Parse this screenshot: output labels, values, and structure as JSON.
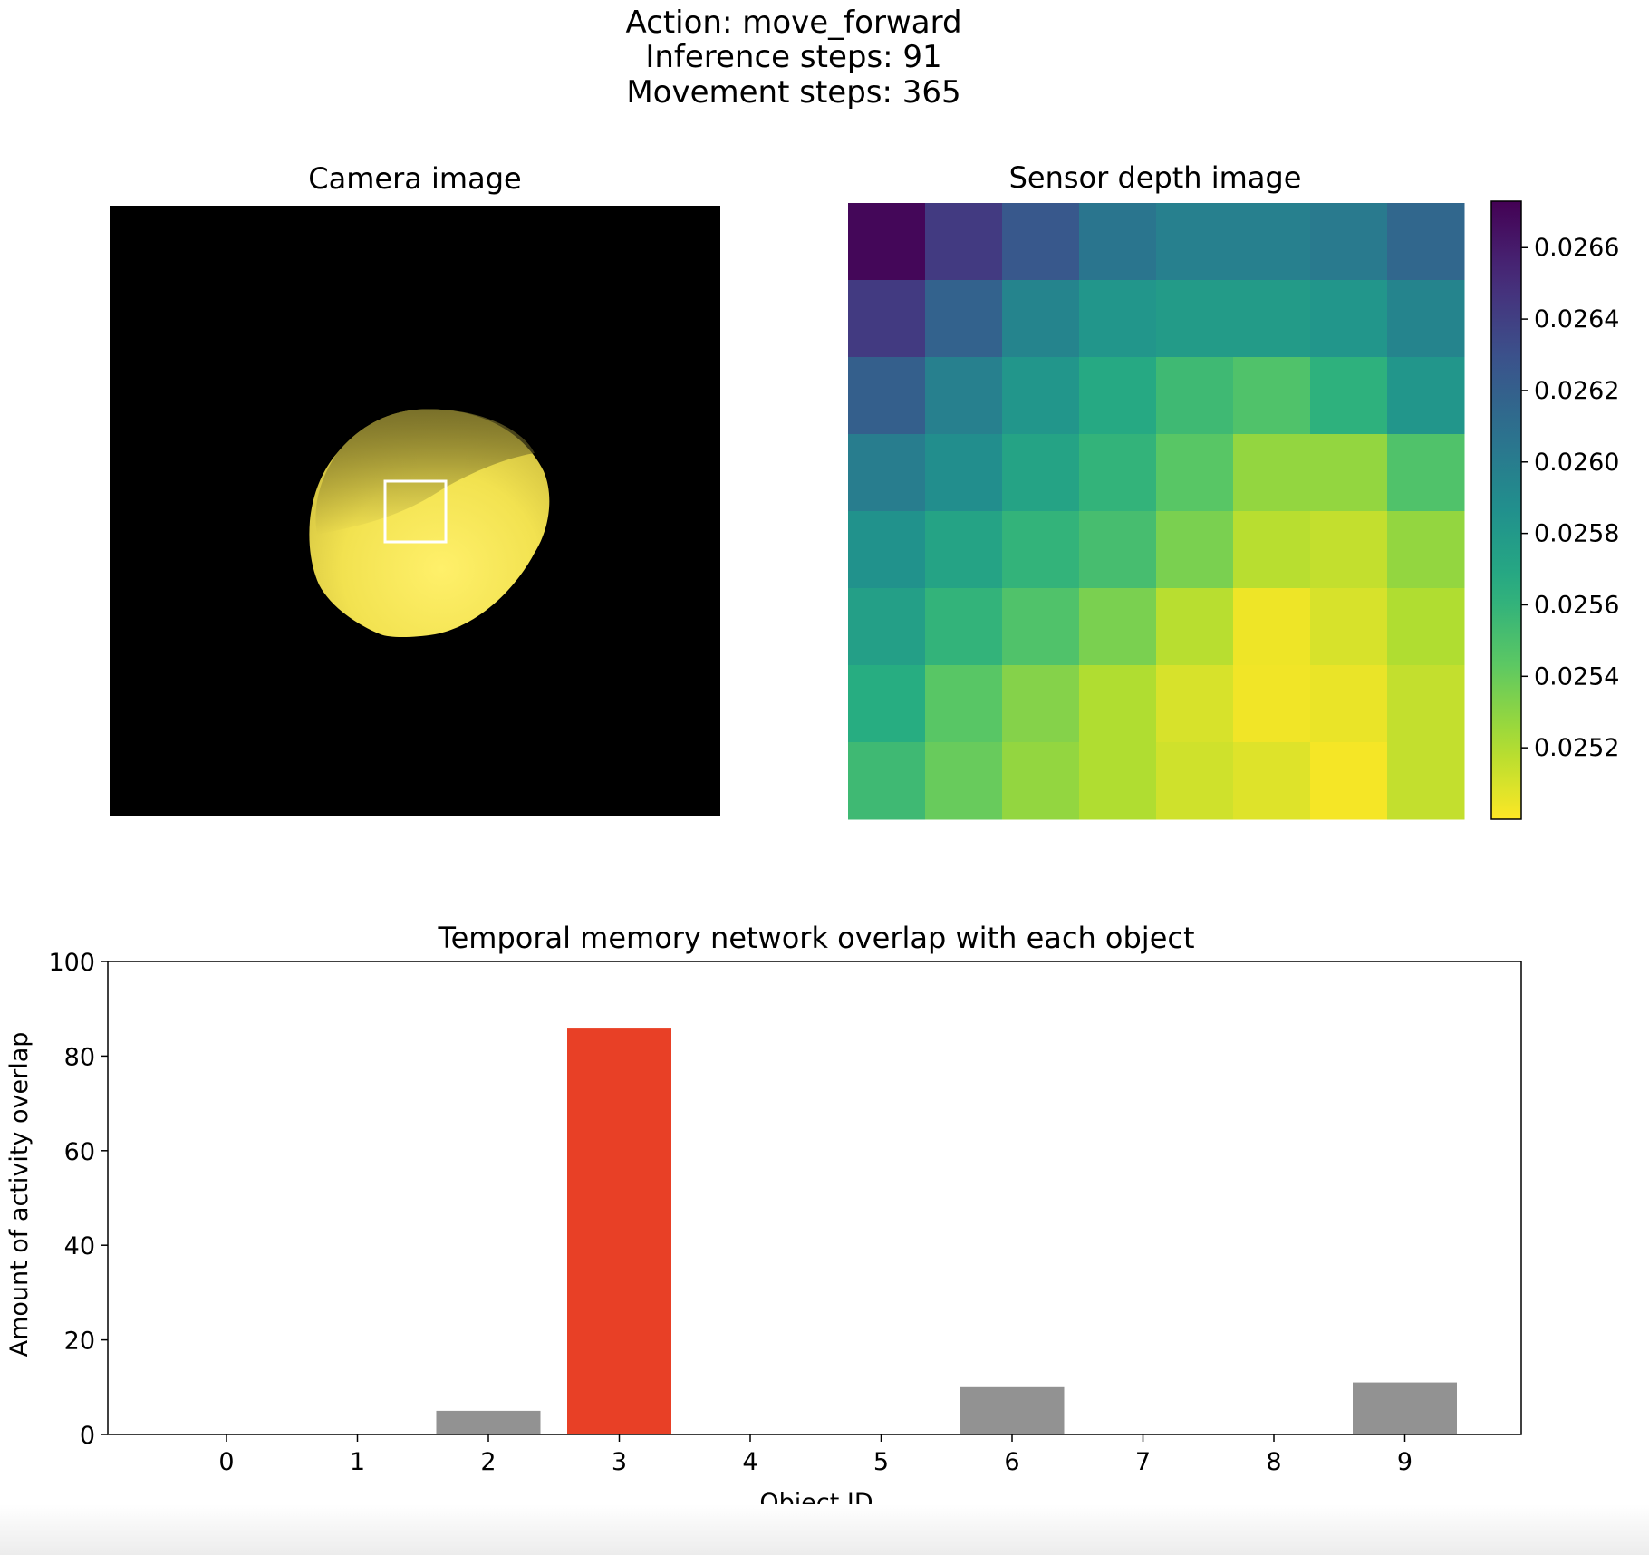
{
  "suptitle": {
    "lines": [
      "Action: move_forward",
      "Inference steps: 91",
      "Movement steps: 365"
    ]
  },
  "camera": {
    "title": "Camera image",
    "background": "#000000",
    "object_color": "#f2e45a",
    "box_color": "#ffffff"
  },
  "chart_data": [
    {
      "type": "heatmap",
      "title": "Sensor depth image",
      "colormap": "viridis_r",
      "vmin": 0.025,
      "vmax": 0.02673,
      "colorbar_ticks": [
        0.0252,
        0.0254,
        0.0256,
        0.0258,
        0.026,
        0.0262,
        0.0264,
        0.0266
      ],
      "colorbar_tick_labels": [
        "0.0252",
        "0.0254",
        "0.0256",
        "0.0258",
        "0.0260",
        "0.0262",
        "0.0264",
        "0.0266"
      ],
      "values": [
        [
          0.0267,
          0.02643,
          0.02625,
          0.02605,
          0.02598,
          0.02598,
          0.02602,
          0.02615
        ],
        [
          0.02643,
          0.02618,
          0.02595,
          0.02582,
          0.02578,
          0.02578,
          0.02582,
          0.02595
        ],
        [
          0.0262,
          0.02598,
          0.02582,
          0.02568,
          0.02555,
          0.02548,
          0.02562,
          0.02582
        ],
        [
          0.026,
          0.02588,
          0.02572,
          0.0256,
          0.02545,
          0.02528,
          0.02528,
          0.02548
        ],
        [
          0.02585,
          0.02572,
          0.0256,
          0.02552,
          0.02535,
          0.02518,
          0.02515,
          0.02528
        ],
        [
          0.02575,
          0.0256,
          0.02548,
          0.02535,
          0.02518,
          0.02504,
          0.0251,
          0.0252
        ],
        [
          0.02565,
          0.02545,
          0.02532,
          0.0252,
          0.0251,
          0.02503,
          0.02505,
          0.02515
        ],
        [
          0.02555,
          0.0254,
          0.02528,
          0.0252,
          0.02512,
          0.02508,
          0.02502,
          0.02515
        ]
      ]
    },
    {
      "type": "bar",
      "title": "Temporal memory network overlap with each object",
      "xlabel": "Object ID",
      "ylabel": "Amount of activity overlap",
      "categories": [
        "0",
        "1",
        "2",
        "3",
        "4",
        "5",
        "6",
        "7",
        "8",
        "9"
      ],
      "values": [
        0,
        0,
        5,
        86,
        0,
        0,
        10,
        0,
        0,
        11
      ],
      "highlight_index": 3,
      "bar_color": "#929292",
      "highlight_color": "#e84026",
      "ylim": [
        0,
        100
      ],
      "yticks": [
        0,
        20,
        40,
        60,
        80,
        100
      ],
      "grid": false
    }
  ]
}
